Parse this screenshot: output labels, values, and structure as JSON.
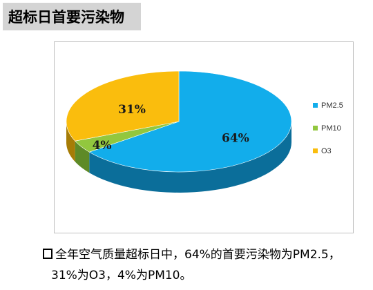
{
  "header": {
    "title": "超标日首要污染物"
  },
  "chart_data": {
    "type": "pie",
    "title": "",
    "slices": [
      {
        "name": "PM2.5",
        "value": 64,
        "label": "64%",
        "color": "#12ADEB",
        "side_color": "#0B6E9A"
      },
      {
        "name": "PM10",
        "value": 4,
        "label": "4%",
        "color": "#92C73E",
        "side_color": "#5E8A27"
      },
      {
        "name": "O3",
        "value": 31,
        "label": "31%",
        "color": "#FABD0D",
        "side_color": "#A67C06"
      }
    ],
    "legend_position": "right",
    "style": "3d"
  },
  "caption": {
    "line1": "全年空气质量超标日中，64%的首要污染物为PM2.5，",
    "line2": "31%为O3，4%为PM10。"
  }
}
